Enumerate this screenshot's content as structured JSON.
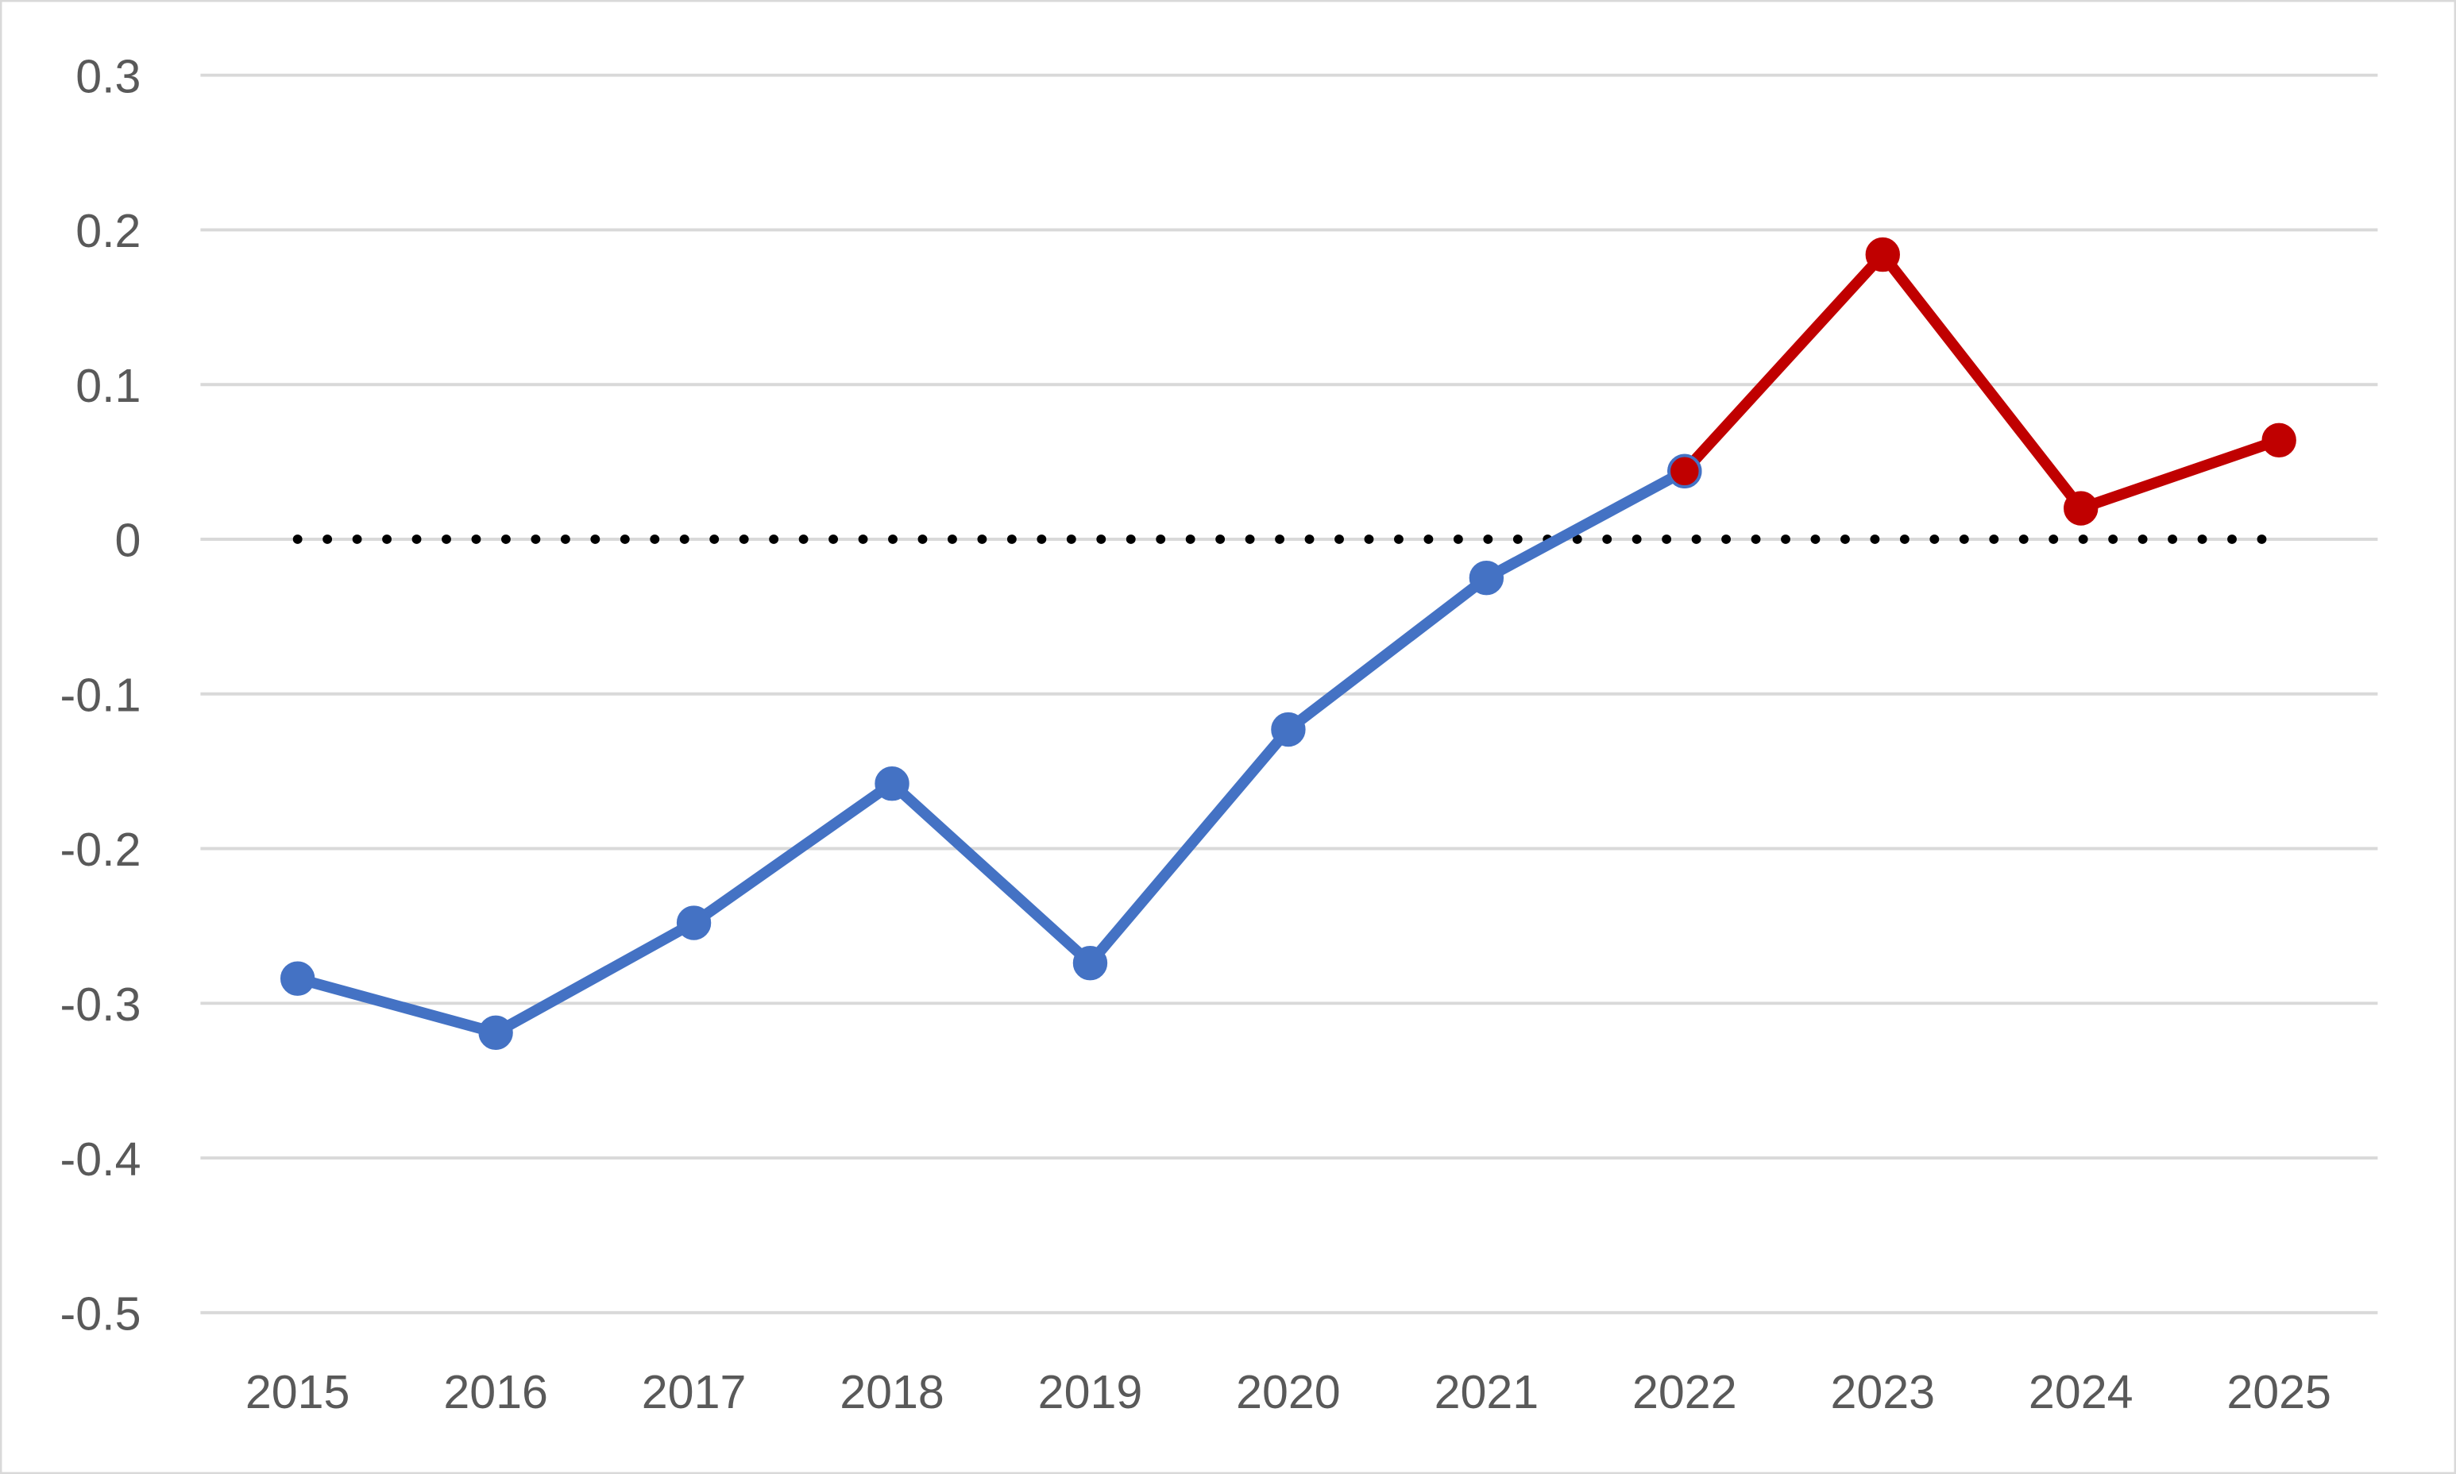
{
  "chart_data": {
    "type": "line",
    "title": "",
    "xlabel": "",
    "ylabel": "",
    "categories": [
      "2015",
      "2016",
      "2017",
      "2018",
      "2019",
      "2020",
      "2021",
      "2022",
      "2023",
      "2024",
      "2025"
    ],
    "ylim": [
      -0.5,
      0.3
    ],
    "yticks": [
      "0.3",
      "0.2",
      "0.1",
      "0",
      "-0.1",
      "-0.2",
      "-0.3",
      "-0.4",
      "-0.5"
    ],
    "ytick_values": [
      0.3,
      0.2,
      0.1,
      0,
      -0.1,
      -0.2,
      -0.3,
      -0.4,
      -0.5
    ],
    "grid": true,
    "legend": "none",
    "series": [
      {
        "color": "#4472C4",
        "x": [
          "2015",
          "2016",
          "2017",
          "2018",
          "2019",
          "2020",
          "2021",
          "2022"
        ],
        "values": [
          -0.284,
          -0.319,
          -0.248,
          -0.158,
          -0.274,
          -0.123,
          -0.025,
          0.044
        ]
      },
      {
        "color": "#C00000",
        "x": [
          "2022",
          "2023",
          "2024",
          "2025"
        ],
        "values": [
          0.044,
          0.184,
          0.02,
          0.064
        ]
      }
    ],
    "reference_line": {
      "value": 0,
      "style": "dotted",
      "color": "#000000",
      "from": "2015",
      "to": "2025"
    }
  }
}
